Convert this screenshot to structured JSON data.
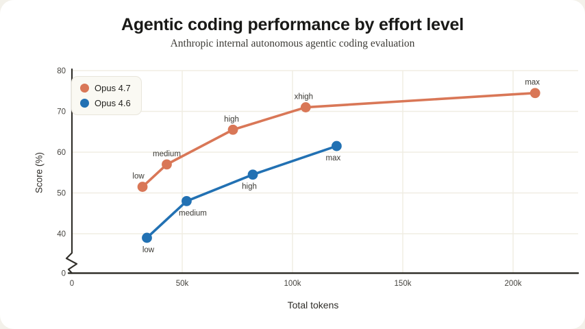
{
  "chart_data": {
    "type": "line",
    "title": "Agentic coding performance by effort level",
    "subtitle": "Anthropic internal autonomous agentic coding evaluation",
    "xlabel": "Total tokens",
    "ylabel": "Score (%)",
    "ylim": [
      0,
      80
    ],
    "y_axis_break_between": [
      0,
      40
    ],
    "grid": true,
    "legend_position": "top-left",
    "xticks": [
      {
        "tokens_k": 0,
        "label": "0"
      },
      {
        "tokens_k": 50,
        "label": "50k"
      },
      {
        "tokens_k": 100,
        "label": "100k"
      },
      {
        "tokens_k": 150,
        "label": "150k"
      },
      {
        "tokens_k": 200,
        "label": "200k"
      }
    ],
    "yticks": [
      {
        "value": 0,
        "label": "0"
      },
      {
        "value": 40,
        "label": "40"
      },
      {
        "value": 50,
        "label": "50"
      },
      {
        "value": 60,
        "label": "60"
      },
      {
        "value": 70,
        "label": "70"
      },
      {
        "value": 80,
        "label": "80"
      }
    ],
    "series": [
      {
        "name": "Opus 4.7",
        "color": "#d97757",
        "label_side": "above",
        "points": [
          {
            "effort": "low",
            "tokens_k": 32,
            "score": 51.5,
            "dx": -6
          },
          {
            "effort": "medium",
            "tokens_k": 43,
            "score": 57,
            "dx": 0
          },
          {
            "effort": "high",
            "tokens_k": 73,
            "score": 65.5,
            "dx": -2
          },
          {
            "effort": "xhigh",
            "tokens_k": 106,
            "score": 71,
            "dx": -3
          },
          {
            "effort": "max",
            "tokens_k": 210,
            "score": 74.5,
            "dx": -4
          }
        ]
      },
      {
        "name": "Opus 4.6",
        "color": "#2271b3",
        "label_side": "below",
        "points": [
          {
            "effort": "low",
            "tokens_k": 34,
            "score": 39,
            "dx": 2
          },
          {
            "effort": "medium",
            "tokens_k": 52,
            "score": 48,
            "dx": 9
          },
          {
            "effort": "high",
            "tokens_k": 82,
            "score": 54.5,
            "dx": -5
          },
          {
            "effort": "max",
            "tokens_k": 120,
            "score": 61.5,
            "dx": -5
          }
        ]
      }
    ],
    "style": {
      "grid_color": "#f0ede3",
      "axis_color": "#32302b",
      "tick_text_color": "#45433e",
      "point_label_color": "#3b3934",
      "card_bg": "#ffffff",
      "page_bg": "#f3f1ea"
    }
  }
}
